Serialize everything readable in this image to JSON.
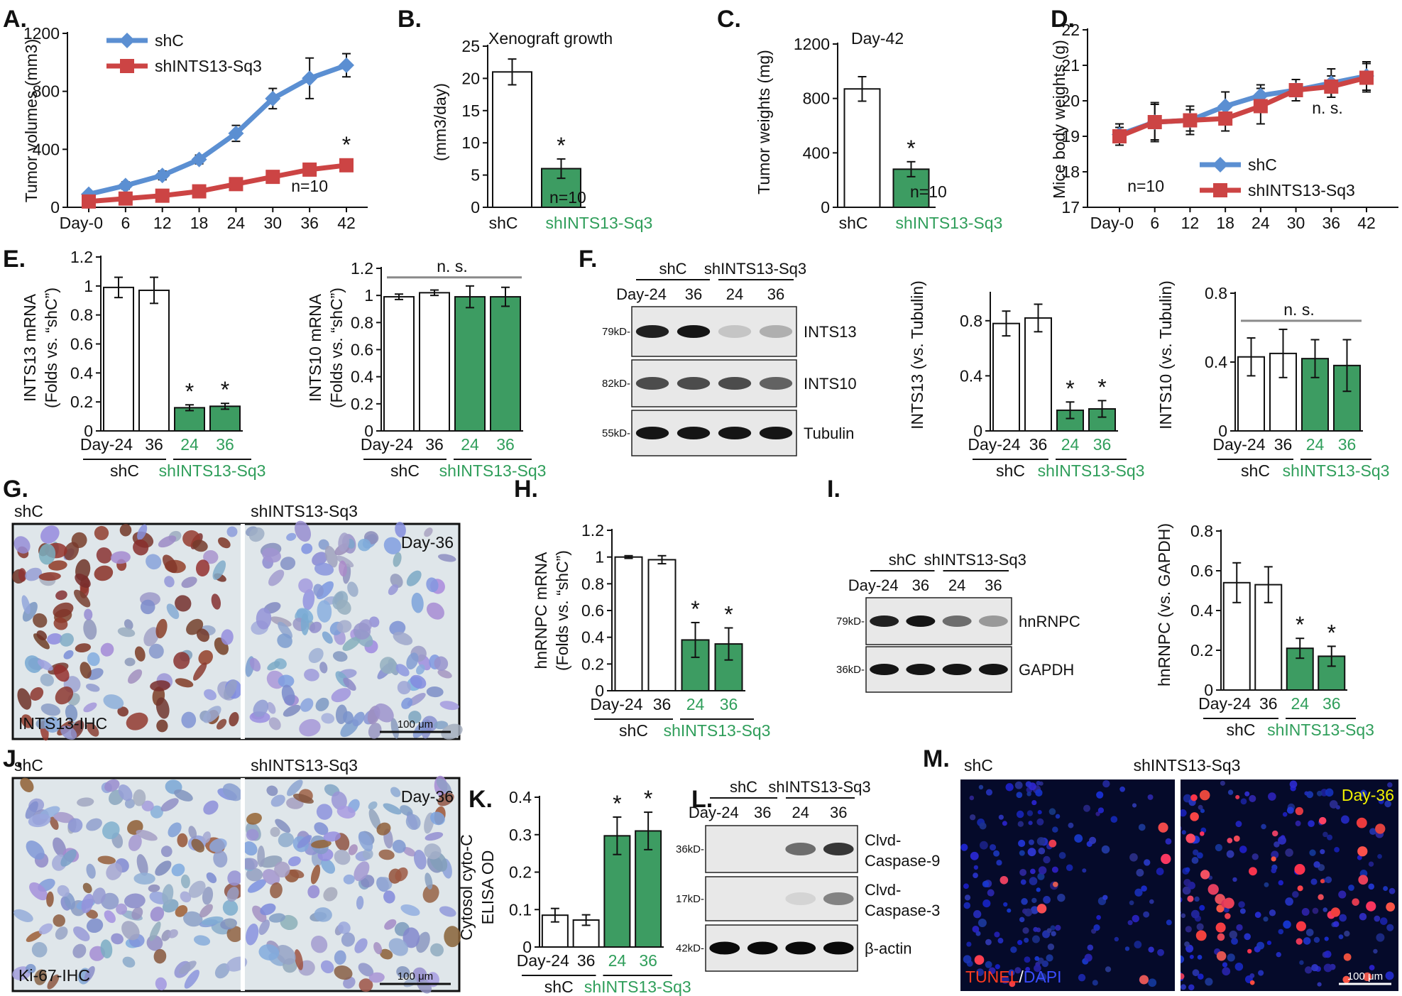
{
  "colors": {
    "shC_line": "#5b8fd2",
    "shINTS_line": "#cc4444",
    "green_bar": "#3d9c62",
    "green_text": "#2f9e5a",
    "ihc_bg": "#dfe6ea",
    "tunel_bg": "#050a2a"
  },
  "groups": {
    "shC": "shC",
    "sh": "shINTS13-Sq3"
  },
  "chart_data": [
    {
      "id": "A",
      "type": "line",
      "panel_label": "A.",
      "ylabel": "Tumor volumes (mm3)",
      "x": [
        "Day-0",
        "6",
        "12",
        "18",
        "24",
        "30",
        "36",
        "42"
      ],
      "yticks": [
        "0",
        "400",
        "800",
        "1200"
      ],
      "ylim": [
        0,
        1200
      ],
      "series": [
        {
          "name": "shC",
          "values": [
            90,
            150,
            220,
            330,
            510,
            750,
            890,
            980
          ],
          "err": [
            20,
            25,
            30,
            30,
            55,
            70,
            140,
            80
          ]
        },
        {
          "name": "shINTS13-Sq3",
          "values": [
            40,
            60,
            80,
            110,
            160,
            210,
            260,
            290
          ],
          "err": [
            10,
            10,
            15,
            20,
            25,
            30,
            30,
            40
          ]
        }
      ],
      "annotations": [
        "*",
        "n=10"
      ]
    },
    {
      "id": "B",
      "type": "bar",
      "panel_label": "B.",
      "title": "Xenograft growth",
      "ylabel": "(mm3/day)",
      "categories": [
        "shC",
        "shINTS13-Sq3"
      ],
      "values": [
        21,
        6
      ],
      "err": [
        2,
        1.5
      ],
      "yticks": [
        "0",
        "5",
        "10",
        "15",
        "20",
        "25"
      ],
      "ylim": [
        0,
        25
      ],
      "annotations": [
        "*",
        "n=10"
      ]
    },
    {
      "id": "C",
      "type": "bar",
      "panel_label": "C.",
      "title": "Day-42",
      "ylabel": "Tumor weights (mg)",
      "categories": [
        "shC",
        "shINTS13-Sq3"
      ],
      "values": [
        870,
        280
      ],
      "err": [
        90,
        55
      ],
      "yticks": [
        "0",
        "400",
        "800",
        "1200"
      ],
      "ylim": [
        0,
        1200
      ],
      "annotations": [
        "*",
        "n=10"
      ]
    },
    {
      "id": "D",
      "type": "line",
      "panel_label": "D.",
      "ylabel": "Mice body weights (g)",
      "x": [
        "Day-0",
        "6",
        "12",
        "18",
        "24",
        "30",
        "36",
        "42"
      ],
      "yticks": [
        "17",
        "18",
        "19",
        "20",
        "21",
        "22"
      ],
      "ylim": [
        17,
        22
      ],
      "series": [
        {
          "name": "shC",
          "values": [
            19.05,
            19.4,
            19.45,
            19.85,
            20.15,
            20.3,
            20.5,
            20.7
          ],
          "err": [
            0.3,
            0.5,
            0.3,
            0.4,
            0.3,
            0.3,
            0.4,
            0.4
          ]
        },
        {
          "name": "shINTS13-Sq3",
          "values": [
            19.0,
            19.4,
            19.45,
            19.5,
            19.85,
            20.3,
            20.4,
            20.65
          ],
          "err": [
            0.25,
            0.55,
            0.4,
            0.35,
            0.5,
            0.3,
            0.3,
            0.4
          ]
        }
      ],
      "annotations": [
        "n. s.",
        "n=10"
      ]
    },
    {
      "id": "E1",
      "type": "bar",
      "panel_label": "E.",
      "ylabel": "INTS13 mRNA",
      "ylabel2": "(Folds vs. “shC”)",
      "categories": [
        "Day-24",
        "36",
        "24",
        "36"
      ],
      "values": [
        0.99,
        0.97,
        0.16,
        0.17
      ],
      "err": [
        0.07,
        0.09,
        0.02,
        0.02
      ],
      "yticks": [
        "0",
        "0.2",
        "0.4",
        "0.6",
        "0.8",
        "1",
        "1.2"
      ],
      "ylim": [
        0,
        1.2
      ],
      "annotations": [
        "*",
        "*"
      ]
    },
    {
      "id": "E2",
      "type": "bar",
      "ylabel": "INTS10 mRNA",
      "ylabel2": "(Folds vs. “shC”)",
      "categories": [
        "Day-24",
        "36",
        "24",
        "36"
      ],
      "values": [
        0.99,
        1.02,
        0.99,
        0.99
      ],
      "err": [
        0.02,
        0.02,
        0.08,
        0.07
      ],
      "yticks": [
        "0",
        "0.2",
        "0.4",
        "0.6",
        "0.8",
        "1",
        "1.2"
      ],
      "ylim": [
        0,
        1.2
      ],
      "annotations": [
        "n. s."
      ]
    },
    {
      "id": "F1",
      "type": "bar",
      "ylabel": "INTS13 (vs. Tubulin)",
      "categories": [
        "Day-24",
        "36",
        "24",
        "36"
      ],
      "values": [
        0.78,
        0.82,
        0.15,
        0.16
      ],
      "err": [
        0.09,
        0.1,
        0.06,
        0.06
      ],
      "yticks": [
        "0",
        "0.4",
        "0.8"
      ],
      "ylim": [
        0,
        1.0
      ],
      "annotations": [
        "*",
        "*"
      ]
    },
    {
      "id": "F2",
      "type": "bar",
      "ylabel": "INTS10 (vs. Tubulin)",
      "categories": [
        "Day-24",
        "36",
        "24",
        "36"
      ],
      "values": [
        0.43,
        0.45,
        0.42,
        0.38
      ],
      "err": [
        0.11,
        0.14,
        0.11,
        0.15
      ],
      "yticks": [
        "0",
        "0.4",
        "0.8"
      ],
      "ylim": [
        0,
        0.8
      ],
      "annotations": [
        "n. s."
      ]
    },
    {
      "id": "H",
      "type": "bar",
      "panel_label": "H.",
      "ylabel": "hnRNPC mRNA",
      "ylabel2": "(Folds vs. “shC”)",
      "categories": [
        "Day-24",
        "36",
        "24",
        "36"
      ],
      "values": [
        1.0,
        0.98,
        0.38,
        0.35
      ],
      "err": [
        0.01,
        0.03,
        0.13,
        0.12
      ],
      "yticks": [
        "0",
        "0.2",
        "0.4",
        "0.6",
        "0.8",
        "1",
        "1.2"
      ],
      "ylim": [
        0,
        1.2
      ],
      "annotations": [
        "*",
        "*"
      ]
    },
    {
      "id": "I2",
      "type": "bar",
      "ylabel": "hnRNPC (vs. GAPDH)",
      "categories": [
        "Day-24",
        "36",
        "24",
        "36"
      ],
      "values": [
        0.54,
        0.53,
        0.21,
        0.17
      ],
      "err": [
        0.1,
        0.09,
        0.05,
        0.05
      ],
      "yticks": [
        "0",
        "0.2",
        "0.4",
        "0.6",
        "0.8"
      ],
      "ylim": [
        0,
        0.8
      ],
      "annotations": [
        "*",
        "*"
      ]
    },
    {
      "id": "K",
      "type": "bar",
      "panel_label": "K.",
      "ylabel": "Cytosol cyto-C",
      "ylabel2": "ELISA OD",
      "categories": [
        "Day-24",
        "36",
        "24",
        "36"
      ],
      "values": [
        0.085,
        0.072,
        0.297,
        0.31
      ],
      "err": [
        0.018,
        0.014,
        0.05,
        0.05
      ],
      "yticks": [
        "0",
        "0.1",
        "0.2",
        "0.3",
        "0.4"
      ],
      "ylim": [
        0,
        0.4
      ],
      "annotations": [
        "*",
        "*"
      ]
    }
  ],
  "blots": {
    "F": {
      "panel_label": "F.",
      "lanes": [
        "Day-24",
        "36",
        "24",
        "36"
      ],
      "bands": [
        {
          "kd": "79kD-",
          "name": "INTS13",
          "intensity": [
            0.9,
            0.95,
            0.15,
            0.25
          ]
        },
        {
          "kd": "82kD-",
          "name": "INTS10",
          "intensity": [
            0.7,
            0.7,
            0.7,
            0.6
          ]
        },
        {
          "kd": "55kD-",
          "name": "Tubulin",
          "intensity": [
            0.95,
            0.95,
            0.95,
            0.95
          ]
        }
      ]
    },
    "I": {
      "panel_label": "I.",
      "lanes": [
        "Day-24",
        "36",
        "24",
        "36"
      ],
      "bands": [
        {
          "kd": "79kD-",
          "name": "hnRNPC",
          "intensity": [
            0.9,
            0.95,
            0.55,
            0.35
          ]
        },
        {
          "kd": "36kD-",
          "name": "GAPDH",
          "intensity": [
            0.95,
            0.95,
            0.95,
            0.95
          ]
        }
      ]
    },
    "L": {
      "panel_label": "L.",
      "lanes": [
        "Day-24",
        "36",
        "24",
        "36"
      ],
      "bands": [
        {
          "kd": "36kD-",
          "name": "Clvd-",
          "name2": "Caspase-9",
          "intensity": [
            0,
            0,
            0.55,
            0.8
          ]
        },
        {
          "kd": "17kD-",
          "name": "Clvd-",
          "name2": "Caspase-3",
          "intensity": [
            0,
            0,
            0.08,
            0.45
          ]
        },
        {
          "kd": "42kD-",
          "name": "β-actin",
          "intensity": [
            1,
            1,
            1,
            1
          ]
        }
      ]
    }
  },
  "images": {
    "G": {
      "panel_label": "G.",
      "left": "shC",
      "right": "shINTS13-Sq3",
      "stamp": "Day-36",
      "caption": "INTS13-IHC",
      "scale": "100 μm"
    },
    "J": {
      "panel_label": "J.",
      "left": "shC",
      "right": "shINTS13-Sq3",
      "stamp": "Day-36",
      "caption": "Ki-67-IHC",
      "scale": "100 μm"
    },
    "M": {
      "panel_label": "M.",
      "left": "shC",
      "right": "shINTS13-Sq3",
      "stamp": "Day-36",
      "caption_red": "TUNEL",
      "caption_sep": "/",
      "caption_blue": "DAPI",
      "scale": "100 μm"
    }
  }
}
